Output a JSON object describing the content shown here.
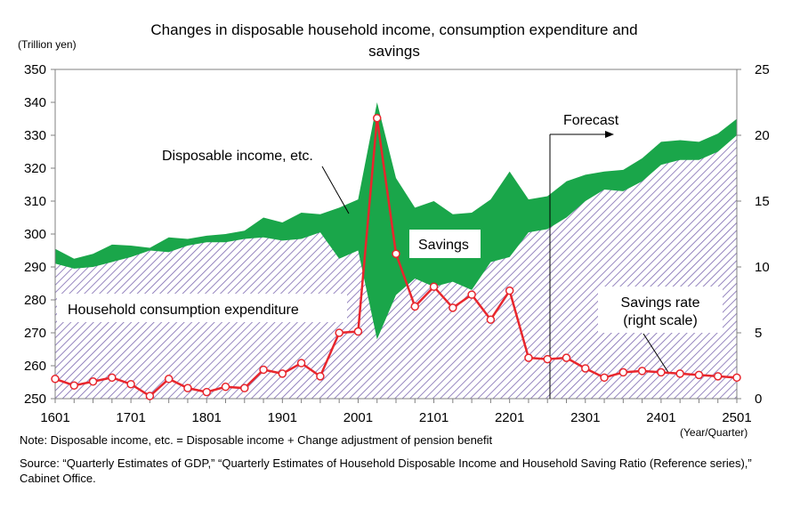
{
  "chart_data": {
    "type": "area",
    "title_line1": "Changes in disposable household income, consumption expenditure and",
    "title_line2": "savings",
    "left_unit": "(Trillion yen)",
    "x_unit": "(Year/Quarter)",
    "left_axis": {
      "min": 250,
      "max": 350,
      "ticks": [
        "250",
        "260",
        "270",
        "280",
        "290",
        "300",
        "310",
        "320",
        "330",
        "340",
        "350"
      ]
    },
    "right_axis": {
      "min": 0,
      "max": 25,
      "ticks": [
        "0",
        "5",
        "10",
        "15",
        "20",
        "25"
      ]
    },
    "x_ticks": [
      "1601",
      "1701",
      "1801",
      "1901",
      "2001",
      "2101",
      "2201",
      "2301",
      "2401",
      "2501"
    ],
    "x": [
      "1601",
      "1602",
      "1603",
      "1604",
      "1701",
      "1702",
      "1703",
      "1704",
      "1801",
      "1802",
      "1803",
      "1804",
      "1901",
      "1902",
      "1903",
      "1904",
      "2001",
      "2002",
      "2003",
      "2004",
      "2101",
      "2102",
      "2103",
      "2104",
      "2201",
      "2202",
      "2203",
      "2204",
      "2301",
      "2302",
      "2303",
      "2304",
      "2401",
      "2402",
      "2403",
      "2404",
      "2501"
    ],
    "series": [
      {
        "name": "Disposable income, etc.",
        "axis": "left",
        "values": [
          295.5,
          292.5,
          294.0,
          296.8,
          296.5,
          295.8,
          299.0,
          298.5,
          299.5,
          300.0,
          301.0,
          305.0,
          303.5,
          306.5,
          306.0,
          308.0,
          310.5,
          340.0,
          317.0,
          308.0,
          310.0,
          306.0,
          306.5,
          310.5,
          319.0,
          310.5,
          311.5,
          316.0,
          318.0,
          319.0,
          319.5,
          323.0,
          328.0,
          328.5,
          328.0,
          330.5,
          335.0
        ]
      },
      {
        "name": "Household consumption expenditure",
        "axis": "left",
        "values": [
          291.0,
          289.5,
          290.0,
          291.5,
          293.0,
          295.0,
          294.5,
          296.5,
          297.5,
          297.5,
          298.5,
          299.0,
          298.0,
          298.5,
          300.5,
          292.5,
          295.0,
          268.0,
          281.5,
          286.5,
          284.0,
          285.5,
          283.0,
          291.5,
          293.0,
          300.5,
          301.5,
          305.0,
          310.0,
          313.5,
          313.0,
          316.0,
          321.0,
          322.5,
          322.5,
          325.0,
          330.0
        ]
      },
      {
        "name": "Savings rate (right scale)",
        "axis": "right",
        "values": [
          1.5,
          1.0,
          1.3,
          1.6,
          1.1,
          0.2,
          1.5,
          0.8,
          0.5,
          0.9,
          0.8,
          2.2,
          1.9,
          2.7,
          1.7,
          5.0,
          5.1,
          21.3,
          11.0,
          7.0,
          8.5,
          6.9,
          7.9,
          6.0,
          8.2,
          3.1,
          3.0,
          3.1,
          2.3,
          1.6,
          2.0,
          2.1,
          2.0,
          1.9,
          1.8,
          1.7,
          1.6
        ]
      }
    ],
    "annotations": {
      "disposable": "Disposable income, etc.",
      "savings": "Savings",
      "consumption": "Household consumption expenditure",
      "forecast": "Forecast",
      "savings_rate_1": "Savings rate",
      "savings_rate_2": "(right scale)"
    },
    "colors": {
      "income_fill": "#1aa64a",
      "consumption_hatch": "#7d69b0",
      "rate_line": "#e8262d"
    },
    "grid": false,
    "legend": "none"
  },
  "notes": {
    "note": "Note: Disposable income, etc. = Disposable income + Change adjustment of pension benefit",
    "source": "Source: “Quarterly Estimates of GDP,” “Quarterly Estimates of Household Disposable Income and Household Saving Ratio (Reference series),” Cabinet Office."
  }
}
